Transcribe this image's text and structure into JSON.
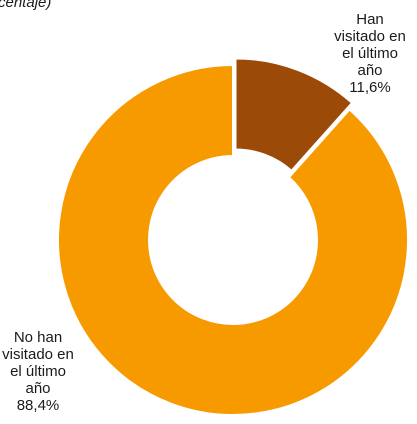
{
  "caption": "centaje)",
  "chart_data": {
    "type": "pie",
    "donut": true,
    "categories": [
      "Han visitado en el último año",
      "No han visitado en el último año"
    ],
    "values": [
      11.6,
      88.4
    ],
    "value_labels": [
      "11,6%",
      "88,4%"
    ],
    "label_lines": [
      [
        "Han",
        "visitado en",
        "el último",
        "año",
        "11,6%"
      ],
      [
        "No han",
        "visitado en",
        "el último",
        "año",
        "88,4%"
      ]
    ],
    "colors": [
      "#9c4a08",
      "#f79a00"
    ],
    "title": "",
    "legend": "none"
  }
}
